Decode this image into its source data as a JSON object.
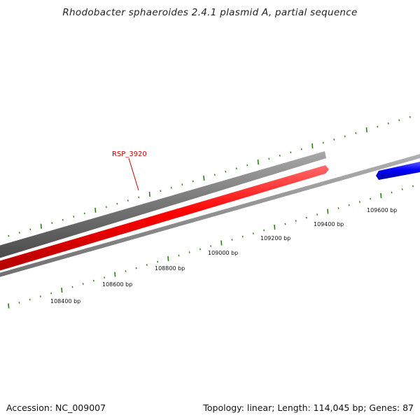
{
  "title": "Rhodobacter sphaeroides 2.4.1 plasmid A, partial sequence",
  "footer": {
    "accession": "Accession: NC_009007",
    "summary": "Topology: linear; Length: 114,045 bp; Genes: 87"
  },
  "gene_labels": [
    {
      "name": "RSP_3920",
      "color": "#cc0000"
    }
  ],
  "ruler": {
    "tick_labels": [
      "108400 bp",
      "108600 bp",
      "108800 bp",
      "109000 bp",
      "109200 bp",
      "109400 bp",
      "109600 bp"
    ],
    "tick_color": "#2e7d1a"
  },
  "tracks": [
    {
      "name": "gene-track",
      "color": "#707070",
      "strand": "forward"
    },
    {
      "name": "cds-track",
      "color": "#ff0000",
      "strand": "forward"
    },
    {
      "name": "reverse-gene-track",
      "color": "#0000ff",
      "strand": "reverse"
    },
    {
      "name": "sequence-axis",
      "color": "#8c8c8c"
    }
  ]
}
